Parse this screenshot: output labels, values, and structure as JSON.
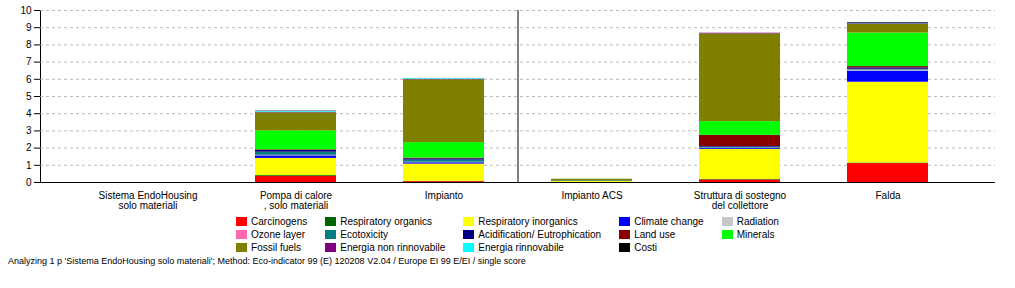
{
  "chart_data": {
    "type": "bar",
    "stacked": true,
    "categories": [
      "Sistema EndoHousing\nsolo materiali",
      "Pompa di calore\n, solo materiali",
      "Impianto",
      "Impianto ACS",
      "Struttura di sostegno\ndel collettore",
      "Falda"
    ],
    "series": [
      {
        "name": "Carcinogens",
        "color": "#ff0000",
        "values": [
          0.0,
          0.35,
          0.05,
          0.0,
          0.15,
          1.1
        ]
      },
      {
        "name": "Respiratory organics",
        "color": "#006400",
        "values": [
          0.0,
          0.05,
          0.02,
          0.01,
          0.03,
          0.03
        ]
      },
      {
        "name": "Respiratory inorganics",
        "color": "#ffff00",
        "values": [
          0.0,
          1.0,
          1.0,
          0.05,
          1.75,
          4.7
        ]
      },
      {
        "name": "Climate change",
        "color": "#0000ff",
        "values": [
          0.0,
          0.15,
          0.08,
          0.0,
          0.05,
          0.65
        ]
      },
      {
        "name": "Radiation",
        "color": "#c8c8c8",
        "values": [
          0.0,
          0.02,
          0.02,
          0.0,
          0.01,
          0.04
        ]
      },
      {
        "name": "Ozone layer",
        "color": "#ff69b4",
        "values": [
          0.0,
          0.01,
          0.01,
          0.0,
          0.01,
          0.02
        ]
      },
      {
        "name": "Ecotoxicity",
        "color": "#008080",
        "values": [
          0.0,
          0.18,
          0.12,
          0.04,
          0.05,
          0.04
        ]
      },
      {
        "name": "Acidification/ Eutrophication",
        "color": "#000080",
        "values": [
          0.0,
          0.1,
          0.08,
          0.0,
          0.04,
          0.08
        ]
      },
      {
        "name": "Land use",
        "color": "#8b0000",
        "values": [
          0.0,
          0.04,
          0.04,
          0.0,
          0.65,
          0.08
        ]
      },
      {
        "name": "Minerals",
        "color": "#00ff00",
        "values": [
          0.0,
          1.1,
          0.9,
          0.0,
          0.8,
          1.95
        ]
      },
      {
        "name": "Fossil fuels",
        "color": "#808000",
        "values": [
          0.0,
          1.05,
          3.65,
          0.09,
          5.1,
          0.5
        ]
      },
      {
        "name": "Energia non rinnovabile",
        "color": "#800080",
        "values": [
          0.0,
          0.04,
          0.04,
          0.0,
          0.04,
          0.04
        ]
      },
      {
        "name": "Energia rinnovabile",
        "color": "#00ffff",
        "values": [
          0.0,
          0.04,
          0.04,
          0.0,
          0.0,
          0.03
        ]
      },
      {
        "name": "Costi",
        "color": "#000000",
        "values": [
          0.0,
          0.02,
          0.0,
          0.0,
          0.0,
          0.04
        ]
      }
    ],
    "ylim": [
      0,
      10
    ],
    "yticks": [
      0,
      1,
      2,
      3,
      4,
      5,
      6,
      7,
      8,
      9,
      10
    ],
    "grid": true,
    "legend": "bottom",
    "caption": "Analyzing 1 p 'Sistema EndoHousing solo materiali';  Method: Eco-indicator 99 (E) 120208 V2.04 /  Europe EI 99 E/EI / single score"
  }
}
